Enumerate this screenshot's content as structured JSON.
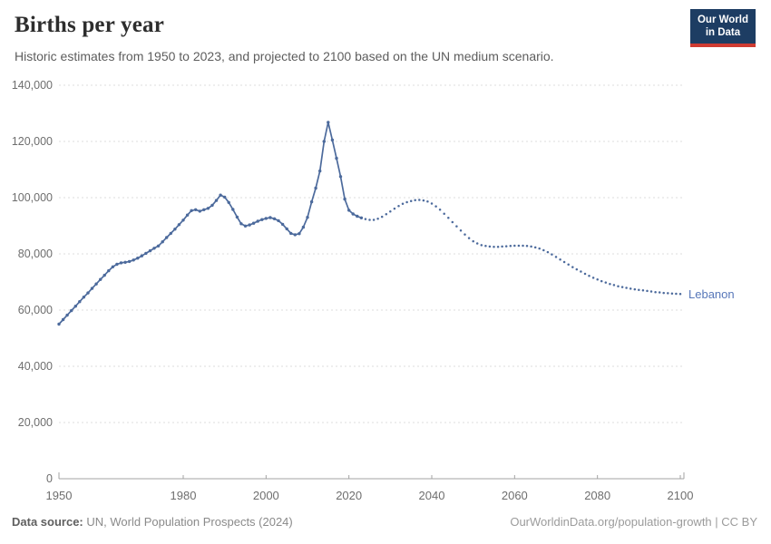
{
  "header": {
    "title": "Births per year",
    "subtitle": "Historic estimates from 1950 to 2023, and projected to 2100 based on the UN medium scenario.",
    "logo": {
      "line1": "Our World",
      "line2": "in Data",
      "bg_color": "#1d3d63",
      "accent_color": "#cf3b32"
    }
  },
  "chart_data": {
    "type": "line",
    "title": "Births per year",
    "entity": "Lebanon",
    "xlabel": "",
    "ylabel": "",
    "xlim": [
      1950,
      2100
    ],
    "ylim": [
      0,
      140000
    ],
    "grid": "horizontal-dashed",
    "legend_position": "end-of-line-label",
    "x_ticks": [
      1950,
      1980,
      2000,
      2020,
      2040,
      2060,
      2080,
      2100
    ],
    "y_ticks": [
      0,
      20000,
      40000,
      60000,
      80000,
      100000,
      120000,
      140000
    ],
    "y_tick_labels": [
      "0",
      "20,000",
      "40,000",
      "60,000",
      "80,000",
      "100,000",
      "120,000",
      "140,000"
    ],
    "colors": {
      "line": "#4c6a9c",
      "entity_label": "#5777b9"
    },
    "series": [
      {
        "name": "historic (1950-2023)",
        "style": "solid-with-markers",
        "start_year": 1950,
        "values": [
          55000,
          56600,
          58200,
          59800,
          61400,
          63000,
          64600,
          66100,
          67700,
          69300,
          70900,
          72400,
          74000,
          75400,
          76300,
          76800,
          77000,
          77300,
          77800,
          78500,
          79300,
          80200,
          81100,
          82000,
          82800,
          84300,
          85800,
          87300,
          88800,
          90400,
          92000,
          93800,
          95400,
          95700,
          95200,
          95700,
          96200,
          97300,
          99000,
          100900,
          100200,
          98300,
          95800,
          93100,
          90700,
          89900,
          90300,
          90900,
          91600,
          92200,
          92600,
          92900,
          92500,
          91800,
          90500,
          88900,
          87300,
          86800,
          87200,
          89500,
          93000,
          98500,
          103400,
          109500,
          120000,
          126800,
          120500,
          114000,
          107500,
          99500,
          95500,
          94200,
          93400,
          92800
        ]
      },
      {
        "name": "UN medium projection (2024-2100)",
        "style": "dotted",
        "start_year": 2024,
        "values": [
          92400,
          92100,
          92100,
          92500,
          93200,
          94100,
          95100,
          96100,
          97000,
          97800,
          98400,
          98800,
          99100,
          99200,
          99000,
          98600,
          97900,
          96900,
          95700,
          94300,
          92800,
          91300,
          89800,
          88300,
          86900,
          85600,
          84500,
          83700,
          83100,
          82800,
          82600,
          82500,
          82500,
          82600,
          82700,
          82800,
          82900,
          82900,
          82900,
          82800,
          82600,
          82300,
          81900,
          81300,
          80600,
          79800,
          78900,
          78000,
          77100,
          76200,
          75300,
          74500,
          73700,
          72900,
          72200,
          71500,
          70900,
          70300,
          69800,
          69300,
          68900,
          68500,
          68200,
          67900,
          67600,
          67400,
          67200,
          67000,
          66800,
          66600,
          66400,
          66300,
          66100,
          66000,
          65900,
          65800,
          65700
        ]
      }
    ]
  },
  "footer": {
    "datasource_label": "Data source:",
    "datasource_value": "UN, World Population Prospects (2024)",
    "citation": "OurWorldinData.org/population-growth | CC BY"
  }
}
